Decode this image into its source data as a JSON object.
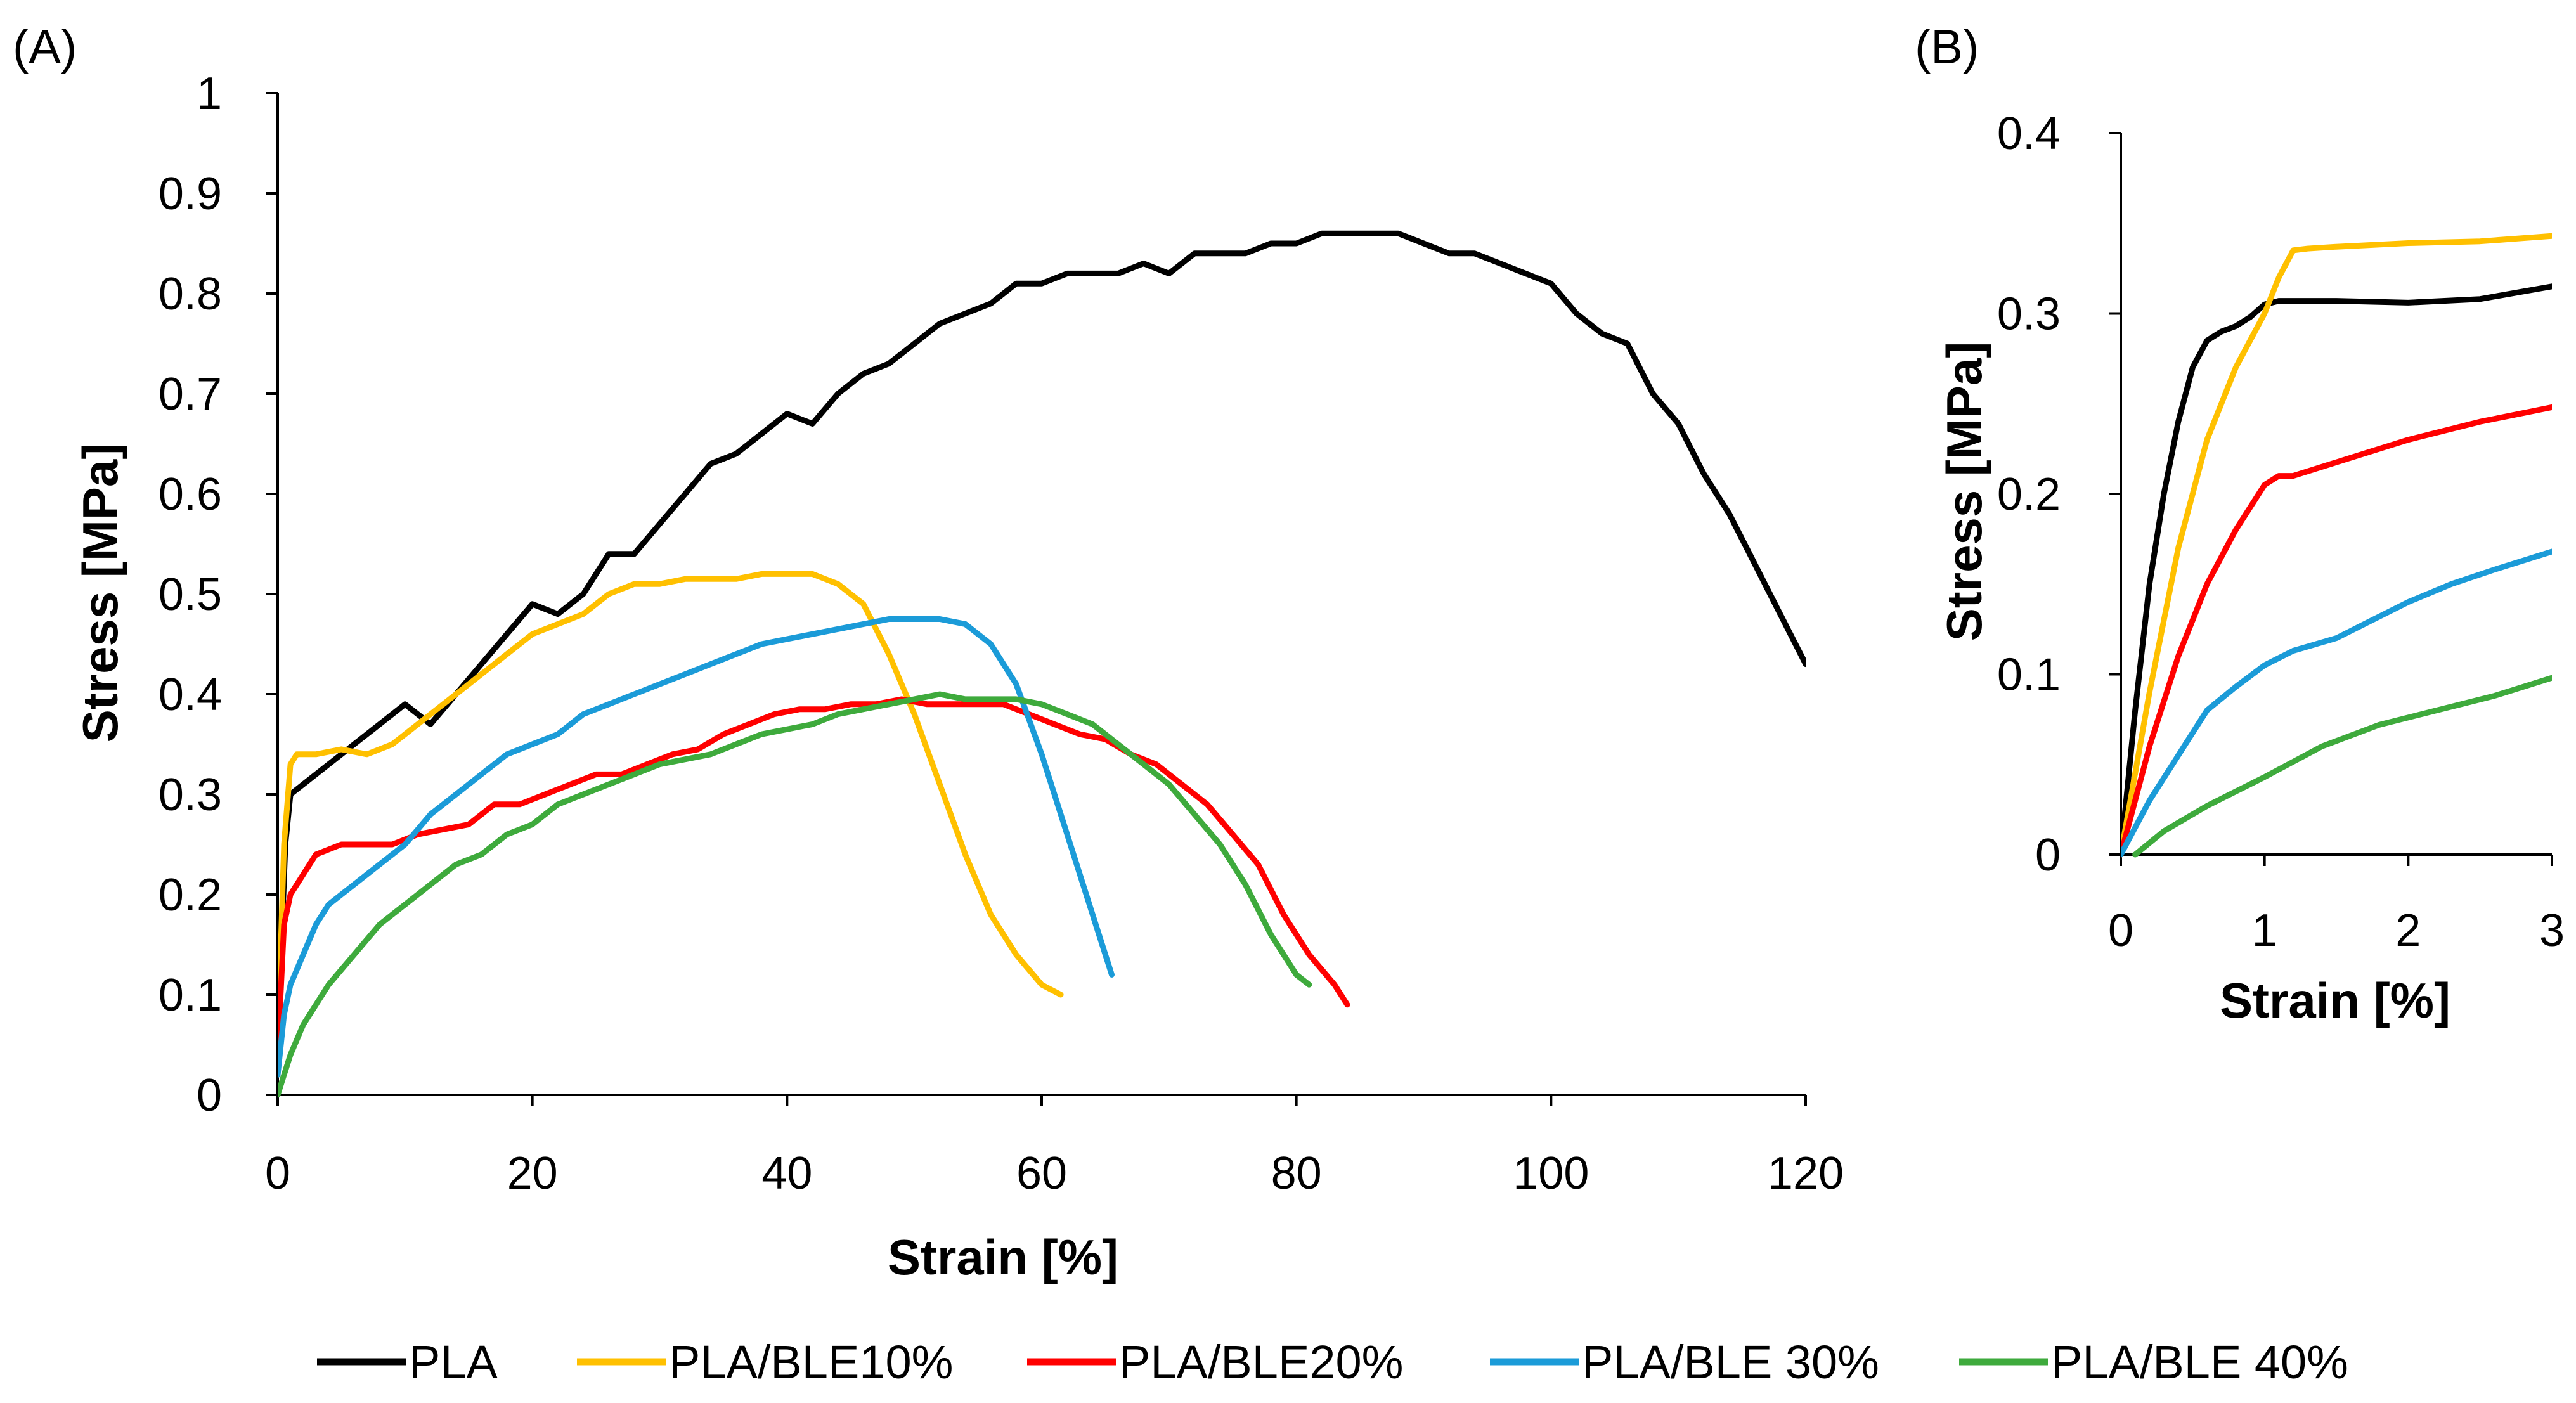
{
  "series_colors": {
    "PLA": "#000000",
    "PLA/BLE10%": "#FFC000",
    "PLA/BLE20%": "#FF0000",
    "PLA/BLE 30%": "#1B9BD8",
    "PLA/BLE 40%": "#3EAA3C"
  },
  "legend": [
    {
      "label": "PLA",
      "color": "#000000"
    },
    {
      "label": "PLA/BLE10%",
      "color": "#FFC000"
    },
    {
      "label": "PLA/BLE20%",
      "color": "#FF0000"
    },
    {
      "label": "PLA/BLE 30%",
      "color": "#1B9BD8"
    },
    {
      "label": "PLA/BLE 40%",
      "color": "#3EAA3C"
    }
  ],
  "chart_data": [
    {
      "panel": "(A)",
      "type": "line",
      "xlabel": "Strain [%]",
      "ylabel": "Stress [MPa]",
      "xlim": [
        0,
        120
      ],
      "ylim": [
        0,
        1
      ],
      "xticks": [
        0,
        20,
        40,
        60,
        80,
        100,
        120
      ],
      "yticks": [
        0,
        0.1,
        0.2,
        0.3,
        0.4,
        0.5,
        0.6,
        0.7,
        0.8,
        0.9,
        1
      ],
      "ytick_labels": [
        "0",
        "0.1",
        "0.2",
        "0.3",
        "0.4",
        "0.5",
        "0.6",
        "0.7",
        "0.8",
        "0.9",
        "1"
      ],
      "series": [
        {
          "name": "PLA",
          "x": [
            0,
            0.3,
            0.6,
            1,
            2,
            4,
            6,
            8,
            10,
            11,
            12,
            14,
            16,
            18,
            20,
            22,
            24,
            26,
            28,
            30,
            32,
            34,
            36,
            38,
            40,
            42,
            44,
            46,
            48,
            50,
            52,
            54,
            56,
            58,
            60,
            62,
            64,
            66,
            68,
            70,
            72,
            74,
            76,
            78,
            80,
            82,
            84,
            86,
            88,
            90,
            92,
            94,
            96,
            98,
            100,
            102,
            104,
            106,
            108,
            110,
            112,
            114,
            116,
            118,
            120
          ],
          "y": [
            0.02,
            0.15,
            0.25,
            0.3,
            0.31,
            0.33,
            0.35,
            0.37,
            0.39,
            0.38,
            0.37,
            0.4,
            0.43,
            0.46,
            0.49,
            0.48,
            0.5,
            0.54,
            0.54,
            0.57,
            0.6,
            0.63,
            0.64,
            0.66,
            0.68,
            0.67,
            0.7,
            0.72,
            0.73,
            0.75,
            0.77,
            0.78,
            0.79,
            0.81,
            0.81,
            0.82,
            0.82,
            0.82,
            0.83,
            0.82,
            0.84,
            0.84,
            0.84,
            0.85,
            0.85,
            0.86,
            0.86,
            0.86,
            0.86,
            0.85,
            0.84,
            0.84,
            0.83,
            0.82,
            0.81,
            0.78,
            0.76,
            0.75,
            0.7,
            0.67,
            0.62,
            0.58,
            0.53,
            0.48,
            0.43
          ]
        },
        {
          "name": "PLA/BLE10%",
          "x": [
            0,
            0.5,
            1,
            1.5,
            3,
            5,
            7,
            9,
            12,
            15,
            18,
            20,
            22,
            24,
            26,
            28,
            30,
            32,
            34,
            36,
            38,
            40,
            42,
            44,
            46,
            48,
            50,
            52,
            54,
            56,
            58,
            60,
            61.5
          ],
          "y": [
            0.05,
            0.25,
            0.33,
            0.34,
            0.34,
            0.345,
            0.34,
            0.35,
            0.38,
            0.41,
            0.44,
            0.46,
            0.47,
            0.48,
            0.5,
            0.51,
            0.51,
            0.515,
            0.515,
            0.515,
            0.52,
            0.52,
            0.52,
            0.51,
            0.49,
            0.44,
            0.38,
            0.31,
            0.24,
            0.18,
            0.14,
            0.11,
            0.1
          ]
        },
        {
          "name": "PLA/BLE20%",
          "x": [
            0,
            0.5,
            1,
            2,
            3,
            5,
            7,
            9,
            11,
            13,
            15,
            17,
            19,
            21,
            23,
            25,
            27,
            29,
            31,
            33,
            35,
            37,
            39,
            41,
            43,
            45,
            47,
            49,
            51,
            53,
            55,
            57,
            59,
            61,
            63,
            65,
            67,
            69,
            71,
            73,
            75,
            77,
            79,
            81,
            83,
            84
          ],
          "y": [
            0.04,
            0.17,
            0.2,
            0.22,
            0.24,
            0.25,
            0.25,
            0.25,
            0.26,
            0.265,
            0.27,
            0.29,
            0.29,
            0.3,
            0.31,
            0.32,
            0.32,
            0.33,
            0.34,
            0.345,
            0.36,
            0.37,
            0.38,
            0.385,
            0.385,
            0.39,
            0.39,
            0.395,
            0.39,
            0.39,
            0.39,
            0.39,
            0.38,
            0.37,
            0.36,
            0.355,
            0.34,
            0.33,
            0.31,
            0.29,
            0.26,
            0.23,
            0.18,
            0.14,
            0.11,
            0.09
          ]
        },
        {
          "name": "PLA/BLE 30%",
          "x": [
            0,
            0.5,
            1,
            2,
            3,
            4,
            6,
            8,
            10,
            12,
            14,
            16,
            18,
            20,
            22,
            24,
            26,
            28,
            30,
            32,
            34,
            36,
            38,
            40,
            42,
            44,
            46,
            48,
            50,
            52,
            54,
            56,
            58,
            60,
            62,
            64,
            65.5
          ],
          "y": [
            0.02,
            0.08,
            0.11,
            0.14,
            0.17,
            0.19,
            0.21,
            0.23,
            0.25,
            0.28,
            0.3,
            0.32,
            0.34,
            0.35,
            0.36,
            0.38,
            0.39,
            0.4,
            0.41,
            0.42,
            0.43,
            0.44,
            0.45,
            0.455,
            0.46,
            0.465,
            0.47,
            0.475,
            0.475,
            0.475,
            0.47,
            0.45,
            0.41,
            0.34,
            0.26,
            0.18,
            0.12
          ]
        },
        {
          "name": "PLA/BLE 40%",
          "x": [
            0,
            0.5,
            1,
            2,
            3,
            4,
            6,
            8,
            10,
            12,
            14,
            16,
            18,
            20,
            22,
            24,
            26,
            28,
            30,
            32,
            34,
            36,
            38,
            40,
            42,
            44,
            46,
            48,
            50,
            52,
            54,
            56,
            58,
            60,
            62,
            64,
            66,
            68,
            70,
            72,
            74,
            76,
            78,
            80,
            81
          ],
          "y": [
            0.0,
            0.02,
            0.04,
            0.07,
            0.09,
            0.11,
            0.14,
            0.17,
            0.19,
            0.21,
            0.23,
            0.24,
            0.26,
            0.27,
            0.29,
            0.3,
            0.31,
            0.32,
            0.33,
            0.335,
            0.34,
            0.35,
            0.36,
            0.365,
            0.37,
            0.38,
            0.385,
            0.39,
            0.395,
            0.4,
            0.395,
            0.395,
            0.395,
            0.39,
            0.38,
            0.37,
            0.35,
            0.33,
            0.31,
            0.28,
            0.25,
            0.21,
            0.16,
            0.12,
            0.11
          ]
        }
      ]
    },
    {
      "panel": "(B)",
      "type": "line",
      "xlabel": "Strain [%]",
      "ylabel": "Stress [MPa]",
      "xlim": [
        0,
        3
      ],
      "ylim": [
        0,
        0.4
      ],
      "xticks": [
        0,
        1,
        2,
        3
      ],
      "yticks": [
        0,
        0.1,
        0.2,
        0.3,
        0.4
      ],
      "ytick_labels": [
        "0",
        "0.1",
        "0.2",
        "0.3",
        "0.4"
      ],
      "series": [
        {
          "name": "PLA",
          "x": [
            0,
            0.1,
            0.2,
            0.3,
            0.4,
            0.5,
            0.6,
            0.7,
            0.8,
            0.9,
            1.0,
            1.1,
            1.2,
            1.5,
            2.0,
            2.5,
            3.0
          ],
          "y": [
            0.0,
            0.08,
            0.15,
            0.2,
            0.24,
            0.27,
            0.285,
            0.29,
            0.293,
            0.298,
            0.305,
            0.307,
            0.307,
            0.307,
            0.306,
            0.308,
            0.315
          ]
        },
        {
          "name": "PLA/BLE10%",
          "x": [
            0,
            0.2,
            0.4,
            0.6,
            0.8,
            1.0,
            1.1,
            1.2,
            1.3,
            1.5,
            2.0,
            2.5,
            3.0
          ],
          "y": [
            0.0,
            0.09,
            0.17,
            0.23,
            0.27,
            0.3,
            0.32,
            0.335,
            0.336,
            0.337,
            0.339,
            0.34,
            0.343
          ]
        },
        {
          "name": "PLA/BLE20%",
          "x": [
            0,
            0.2,
            0.4,
            0.6,
            0.8,
            1.0,
            1.1,
            1.2,
            1.4,
            1.6,
            2.0,
            2.5,
            3.0
          ],
          "y": [
            0.0,
            0.06,
            0.11,
            0.15,
            0.18,
            0.205,
            0.21,
            0.21,
            0.215,
            0.22,
            0.23,
            0.24,
            0.248
          ]
        },
        {
          "name": "PLA/BLE 30%",
          "x": [
            0,
            0.2,
            0.4,
            0.6,
            0.8,
            1.0,
            1.2,
            1.5,
            1.7,
            2.0,
            2.3,
            2.6,
            3.0
          ],
          "y": [
            0.0,
            0.03,
            0.055,
            0.08,
            0.093,
            0.105,
            0.113,
            0.12,
            0.128,
            0.14,
            0.15,
            0.158,
            0.168
          ]
        },
        {
          "name": "PLA/BLE 40%",
          "x": [
            0.1,
            0.3,
            0.6,
            1.0,
            1.4,
            1.8,
            2.2,
            2.6,
            3.0
          ],
          "y": [
            0.0,
            0.013,
            0.027,
            0.043,
            0.06,
            0.072,
            0.08,
            0.088,
            0.098
          ]
        }
      ]
    }
  ]
}
